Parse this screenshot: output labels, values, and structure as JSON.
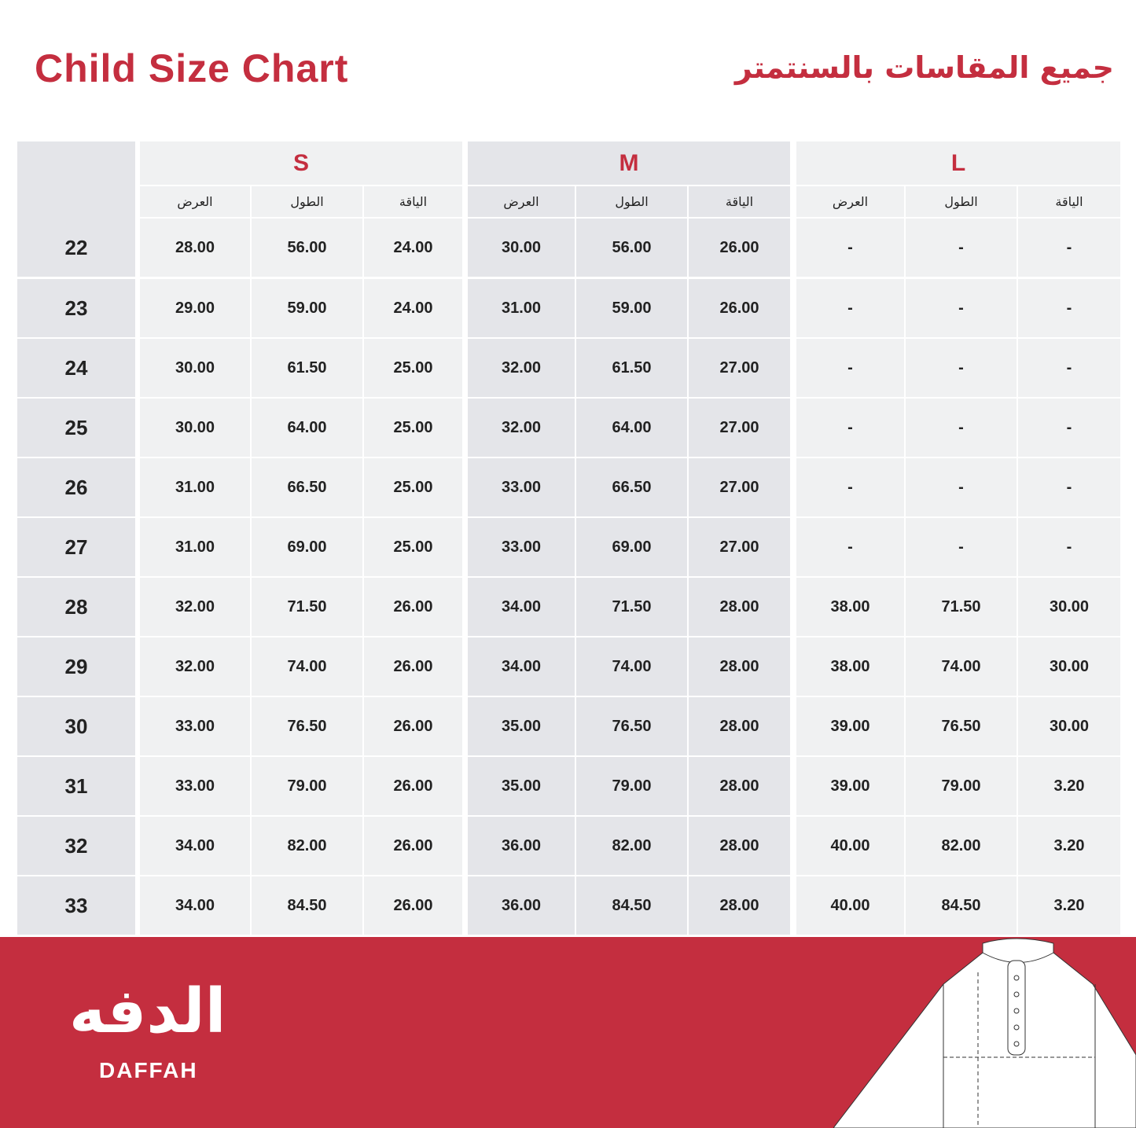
{
  "title": "Child Size Chart",
  "title_ar": "جميع المقاسات بالسنتمتر",
  "colors": {
    "accent": "#c42e3f",
    "cell_light": "#f0f1f2",
    "cell_dark": "#e4e5e9"
  },
  "sizes": [
    {
      "label": "S",
      "columns": [
        "العرض",
        "الطول",
        "الياقة"
      ]
    },
    {
      "label": "M",
      "columns": [
        "العرض",
        "الطول",
        "الياقة"
      ]
    },
    {
      "label": "L",
      "columns": [
        "العرض",
        "الطول",
        "الياقة"
      ]
    }
  ],
  "rows": [
    {
      "label": "22",
      "values": [
        "28.00",
        "56.00",
        "24.00",
        "30.00",
        "56.00",
        "26.00",
        "-",
        "-",
        "-"
      ]
    },
    {
      "label": "23",
      "values": [
        "29.00",
        "59.00",
        "24.00",
        "31.00",
        "59.00",
        "26.00",
        "-",
        "-",
        "-"
      ]
    },
    {
      "label": "24",
      "values": [
        "30.00",
        "61.50",
        "25.00",
        "32.00",
        "61.50",
        "27.00",
        "-",
        "-",
        "-"
      ]
    },
    {
      "label": "25",
      "values": [
        "30.00",
        "64.00",
        "25.00",
        "32.00",
        "64.00",
        "27.00",
        "-",
        "-",
        "-"
      ]
    },
    {
      "label": "26",
      "values": [
        "31.00",
        "66.50",
        "25.00",
        "33.00",
        "66.50",
        "27.00",
        "-",
        "-",
        "-"
      ]
    },
    {
      "label": "27",
      "values": [
        "31.00",
        "69.00",
        "25.00",
        "33.00",
        "69.00",
        "27.00",
        "-",
        "-",
        "-"
      ]
    },
    {
      "label": "28",
      "values": [
        "32.00",
        "71.50",
        "26.00",
        "34.00",
        "71.50",
        "28.00",
        "38.00",
        "71.50",
        "30.00"
      ]
    },
    {
      "label": "29",
      "values": [
        "32.00",
        "74.00",
        "26.00",
        "34.00",
        "74.00",
        "28.00",
        "38.00",
        "74.00",
        "30.00"
      ]
    },
    {
      "label": "30",
      "values": [
        "33.00",
        "76.50",
        "26.00",
        "35.00",
        "76.50",
        "28.00",
        "39.00",
        "76.50",
        "30.00"
      ]
    },
    {
      "label": "31",
      "values": [
        "33.00",
        "79.00",
        "26.00",
        "35.00",
        "79.00",
        "28.00",
        "39.00",
        "79.00",
        "3.20"
      ]
    },
    {
      "label": "32",
      "values": [
        "34.00",
        "82.00",
        "26.00",
        "36.00",
        "82.00",
        "28.00",
        "40.00",
        "82.00",
        "3.20"
      ]
    },
    {
      "label": "33",
      "values": [
        "34.00",
        "84.50",
        "26.00",
        "36.00",
        "84.50",
        "28.00",
        "40.00",
        "84.50",
        "3.20"
      ]
    }
  ],
  "footer": {
    "logo_ar": "الدفه",
    "logo_en": "DAFFAH",
    "garment_icon": "thobe-measurement-illustration"
  }
}
